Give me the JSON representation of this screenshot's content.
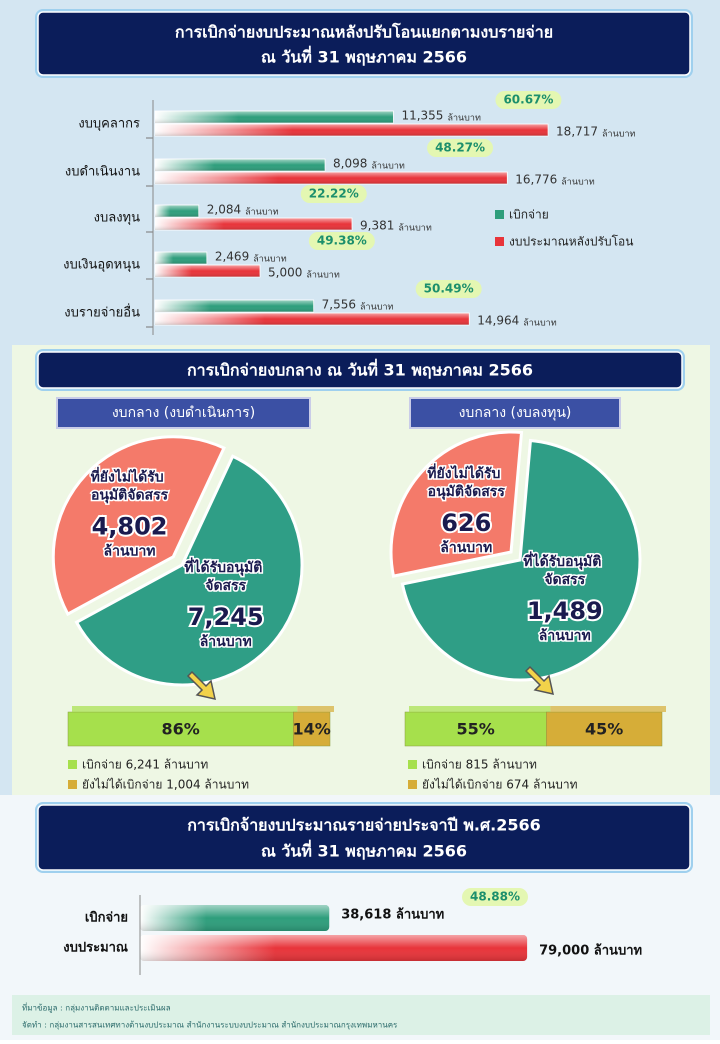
{
  "chart_data": [
    {
      "type": "bar",
      "title": [
        "การเบิกจ่ายงบประมาณหลังปรับโอนแยกตามงบรายจ่าย",
        "ณ วันที่ 31 พฤษภาคม 2566"
      ],
      "categories": [
        "งบบุคลากร",
        "งบดำเนินงาน",
        "งบลงทุน",
        "งบเงินอุดหนุน",
        "งบรายจ่ายอื่น"
      ],
      "series": [
        {
          "name": "เบิกจ่าย",
          "color": "#2e9e7c",
          "values": [
            11355,
            8098,
            2084,
            2469,
            7556
          ],
          "value_labels": [
            "11,355",
            "8,098",
            "2,084",
            "2,469",
            "7,556"
          ]
        },
        {
          "name": "งบประมาณหลังปรับโอน",
          "color": "#e8343a",
          "values": [
            18717,
            16776,
            9381,
            5000,
            14964
          ],
          "value_labels": [
            "18,717",
            "16,776",
            "9,381",
            "5,000",
            "14,964"
          ]
        }
      ],
      "unit": "ล้านบาท",
      "rates": {
        "values": [
          60.67,
          48.27,
          22.22,
          49.38,
          50.49
        ],
        "value_labels": [
          "60.67%",
          "48.27%",
          "22.22%",
          "49.38%",
          "50.49%"
        ]
      },
      "xlim": [
        0,
        20000
      ],
      "legend": "right"
    },
    {
      "type": "pie",
      "title": "การเบิกจ่ายงบกลาง  ณ วันที่ 31 พฤษภาคม 2566",
      "unit": "ล้านบาท",
      "pies": [
        {
          "subtitle": "งบกลาง (งบดำเนินการ)",
          "categories": [
            "ที่ยังไม่ได้รับ อนุมัติจัดสรร",
            "ที่ได้รับอนุมัติ จัดสรร"
          ],
          "values": [
            4802,
            7245
          ],
          "value_labels": [
            "4,802",
            "7,245"
          ],
          "colors": [
            "#f47a6a",
            "#2f9e86"
          ],
          "progress": {
            "xlim": [
              0,
              100
            ],
            "series": [
              {
                "name": "เบิกจ่าย 6,241 ล้านบาท",
                "color": "#a6e04c",
                "values": [
                  86
                ],
                "value_labels": [
                  "86%"
                ]
              },
              {
                "name": "ยังไม่ได้เบิกจ่าย 1,004 ล้านบาท",
                "color": "#d6ad38",
                "values": [
                  14
                ],
                "value_labels": [
                  "14%"
                ]
              }
            ]
          }
        },
        {
          "subtitle": "งบกลาง (งบลงทุน)",
          "categories": [
            "ที่ยังไม่ได้รับ อนุมัติจัดสรร",
            "ที่ได้รับอนุมัติ จัดสรร"
          ],
          "values": [
            626,
            1489
          ],
          "value_labels": [
            "626",
            "1,489"
          ],
          "colors": [
            "#f47a6a",
            "#2f9e86"
          ],
          "progress": {
            "xlim": [
              0,
              100
            ],
            "series": [
              {
                "name": "เบิกจ่าย 815 ล้านบาท",
                "color": "#a6e04c",
                "values": [
                  55
                ],
                "value_labels": [
                  "55%"
                ]
              },
              {
                "name": "ยังไม่ได้เบิกจ่าย 674 ล้านบาท",
                "color": "#d6ad38",
                "values": [
                  45
                ],
                "value_labels": [
                  "45%"
                ]
              }
            ]
          }
        }
      ]
    },
    {
      "type": "bar",
      "title": [
        "การเบิกจ้ายงบประมาณรายจ่ายประจาปี  พ.ศ.2566",
        "ณ วันที่ 31 พฤษภาคม 2566"
      ],
      "categories": [
        "เบิกจ่าย",
        "งบประมาณ"
      ],
      "values": [
        38618,
        79000
      ],
      "value_labels": [
        "38,618 ล้านบาท",
        "79,000 ล้านบาท"
      ],
      "colors": [
        "#2e9e7c",
        "#e8343a"
      ],
      "rates": {
        "values": [
          48.88
        ],
        "value_labels": [
          "48.88%"
        ]
      },
      "xlim": [
        0,
        100000
      ]
    }
  ],
  "footer": {
    "source": "ที่มาข้อมูล : กลุ่มงานติดตามและประเมินผล",
    "prepared_by": "จัดทำ : กลุ่มงานสารสนเทศทางด้านงบประมาณ  สำนักงานระบบงบประมาณ  สำนักงบประมาณกรุงเทพมหานคร"
  }
}
